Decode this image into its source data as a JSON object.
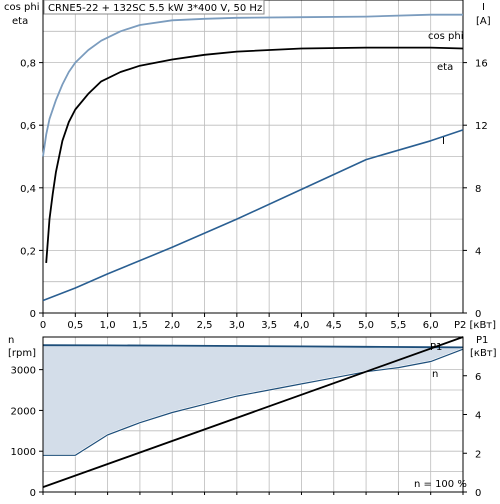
{
  "title_box": "CRNE5-22 + 132SC  5.5 kW  3*400 V, 50 Hz",
  "colors": {
    "cosphi": "#7b9cbe",
    "eta": "#000000",
    "current": "#2a5f92",
    "speed": "#1d4e7a",
    "p1": "#000000",
    "fill": "#d3dde9",
    "grid": "#bcbcbc"
  },
  "chart_data": [
    {
      "type": "line",
      "id": "top",
      "left_axis_label": [
        "cos phi",
        "eta"
      ],
      "right_axis_label": [
        "I",
        "[A]"
      ],
      "x_unit_label": "P2 [кВт]",
      "xlim": [
        0,
        6.5
      ],
      "ylim_left": [
        0,
        1.0
      ],
      "ylim_right": [
        0,
        20
      ],
      "x_ticks": [
        "0",
        "0,5",
        "1,0",
        "1,5",
        "2,0",
        "2,5",
        "3,0",
        "3,5",
        "4,0",
        "4,5",
        "5,0",
        "5,5",
        "6,0"
      ],
      "y_ticks_left": [
        "0",
        "0,2",
        "0,4",
        "0,6",
        "0,8"
      ],
      "y_ticks_right": [
        "0",
        "4",
        "8",
        "12",
        "16"
      ],
      "series": [
        {
          "name": "cos phi",
          "axis": "left",
          "x": [
            0,
            0.05,
            0.1,
            0.2,
            0.3,
            0.4,
            0.5,
            0.7,
            0.9,
            1.2,
            1.5,
            2.0,
            2.5,
            3.0,
            4.0,
            5.0,
            6.0,
            6.5
          ],
          "y": [
            0.5,
            0.57,
            0.62,
            0.68,
            0.73,
            0.77,
            0.8,
            0.84,
            0.87,
            0.9,
            0.92,
            0.935,
            0.94,
            0.943,
            0.945,
            0.947,
            0.953,
            0.953
          ]
        },
        {
          "name": "eta",
          "axis": "left",
          "x": [
            0.05,
            0.1,
            0.15,
            0.2,
            0.3,
            0.4,
            0.5,
            0.7,
            0.9,
            1.2,
            1.5,
            2.0,
            2.5,
            3.0,
            4.0,
            5.0,
            6.0,
            6.5
          ],
          "y": [
            0.16,
            0.3,
            0.38,
            0.45,
            0.55,
            0.61,
            0.65,
            0.7,
            0.74,
            0.77,
            0.79,
            0.81,
            0.825,
            0.835,
            0.845,
            0.848,
            0.848,
            0.845
          ]
        },
        {
          "name": "I",
          "axis": "right",
          "x": [
            0,
            0.5,
            1.0,
            2.0,
            3.0,
            4.0,
            5.0,
            6.0,
            6.5
          ],
          "y": [
            0.8,
            1.6,
            2.5,
            4.2,
            6.0,
            7.9,
            9.8,
            11.0,
            11.7
          ]
        }
      ]
    },
    {
      "type": "line",
      "id": "bottom",
      "left_axis_label": [
        "n",
        "[rpm]"
      ],
      "right_axis_label": [
        "P1",
        "[кВт]"
      ],
      "note": "n = 100 %",
      "xlim": [
        0,
        6.5
      ],
      "ylim_left": [
        0,
        3800
      ],
      "ylim_right": [
        0,
        8
      ],
      "y_ticks_left": [
        "0",
        "1000",
        "2000",
        "3000"
      ],
      "y_ticks_right": [
        "0",
        "2",
        "4",
        "6"
      ],
      "series": [
        {
          "name": "n",
          "axis": "left",
          "x": [
            0,
            0.5,
            1.0,
            1.5,
            2.0,
            2.5,
            3.0,
            3.5,
            4.0,
            4.5,
            5.0,
            5.5,
            6.0,
            6.5
          ],
          "y": [
            900,
            900,
            1400,
            1700,
            1950,
            2150,
            2350,
            2500,
            2650,
            2800,
            2950,
            3050,
            3200,
            3500
          ]
        },
        {
          "name": "",
          "axis": "left",
          "x": [
            0,
            1.0,
            2.0,
            3.0,
            4.0,
            5.0,
            6.0,
            6.5
          ],
          "y": [
            3600,
            3595,
            3590,
            3580,
            3570,
            3560,
            3550,
            3545
          ]
        },
        {
          "name": "P1",
          "axis": "right",
          "x": [
            0,
            6.5
          ],
          "y": [
            0.25,
            8.0
          ]
        }
      ]
    }
  ]
}
